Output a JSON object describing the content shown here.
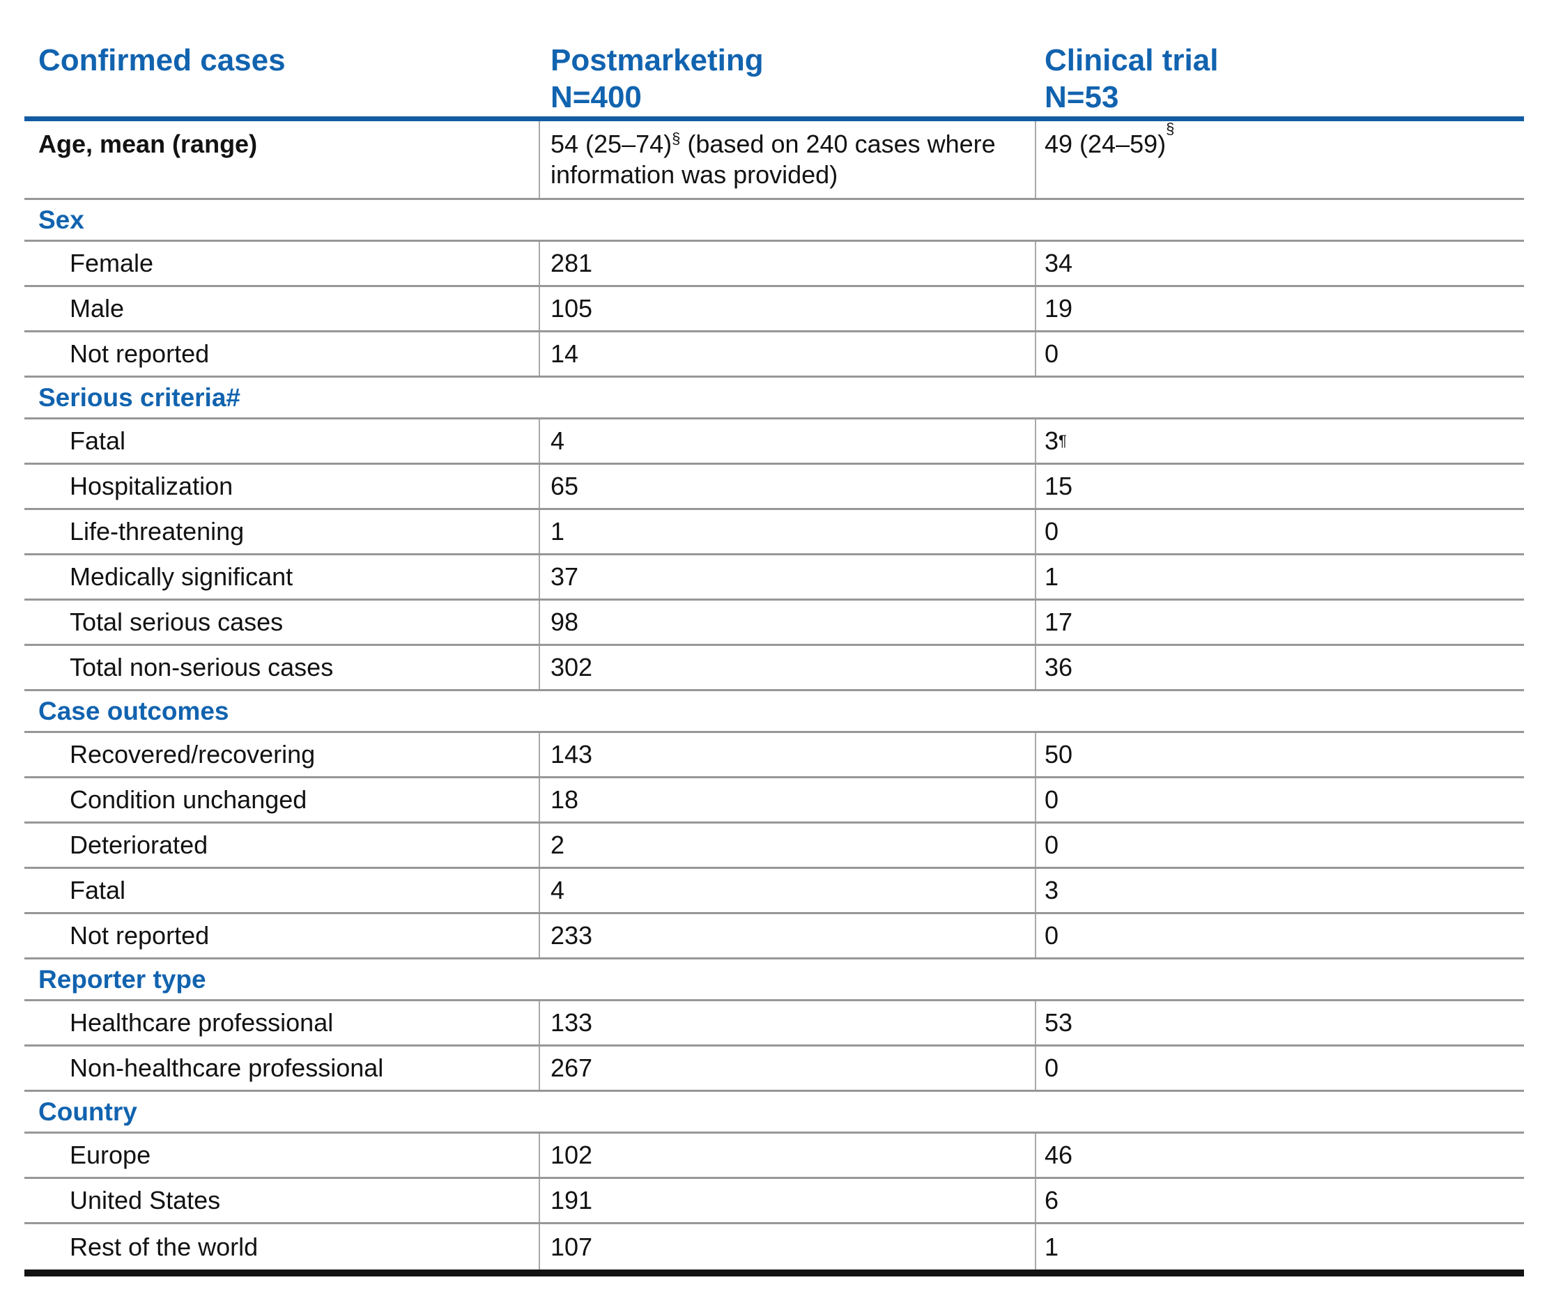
{
  "colors": {
    "accent_blue": "#1163AF",
    "rule_blue": "#135CA4",
    "rule_gray": "#979797",
    "divider_gray": "#A9A9A9",
    "text_black": "#121212",
    "bottom_rule_black": "#131313"
  },
  "header": {
    "col1": "Confirmed cases",
    "col2_line1": "Postmarketing",
    "col2_line2": "N=400",
    "col3_line1": "Clinical trial",
    "col3_line2": "N=53"
  },
  "age_row": {
    "label": "Age, mean (range)",
    "pm": "54 (25–74)",
    "pm_sup": "§",
    "pm_note": " (based on 240 cases where information was provided)",
    "ct": "49 (24–59)",
    "ct_sup": "§"
  },
  "sections": [
    {
      "title": "Sex",
      "rows": [
        {
          "label": "Female",
          "pm": "281",
          "ct": "34"
        },
        {
          "label": "Male",
          "pm": "105",
          "ct": "19"
        },
        {
          "label": "Not reported",
          "pm": "14",
          "ct": "0"
        }
      ]
    },
    {
      "title": "Serious criteria#",
      "rows": [
        {
          "label": "Fatal",
          "pm": "4",
          "ct": "3",
          "ct_sup": "¶"
        },
        {
          "label": "Hospitalization",
          "pm": "65",
          "ct": "15"
        },
        {
          "label": "Life-threatening",
          "pm": "1",
          "ct": "0"
        },
        {
          "label": "Medically significant",
          "pm": "37",
          "ct": "1"
        },
        {
          "label": "Total serious cases",
          "pm": "98",
          "ct": "17"
        },
        {
          "label": "Total non-serious cases",
          "pm": "302",
          "ct": "36"
        }
      ]
    },
    {
      "title": "Case outcomes",
      "rows": [
        {
          "label": "Recovered/recovering",
          "pm": "143",
          "ct": "50"
        },
        {
          "label": "Condition unchanged",
          "pm": "18",
          "ct": "0"
        },
        {
          "label": "Deteriorated",
          "pm": "2",
          "ct": "0"
        },
        {
          "label": "Fatal",
          "pm": "4",
          "ct": "3"
        },
        {
          "label": "Not reported",
          "pm": "233",
          "ct": "0"
        }
      ]
    },
    {
      "title": "Reporter type",
      "rows": [
        {
          "label": "Healthcare professional",
          "pm": "133",
          "ct": "53"
        },
        {
          "label": "Non-healthcare professional",
          "pm": "267",
          "ct": "0"
        }
      ]
    },
    {
      "title": "Country",
      "rows": [
        {
          "label": "Europe",
          "pm": "102",
          "ct": "46"
        },
        {
          "label": "United States",
          "pm": "191",
          "ct": "6"
        },
        {
          "label": "Rest of the world",
          "pm": "107",
          "ct": "1"
        }
      ]
    }
  ]
}
